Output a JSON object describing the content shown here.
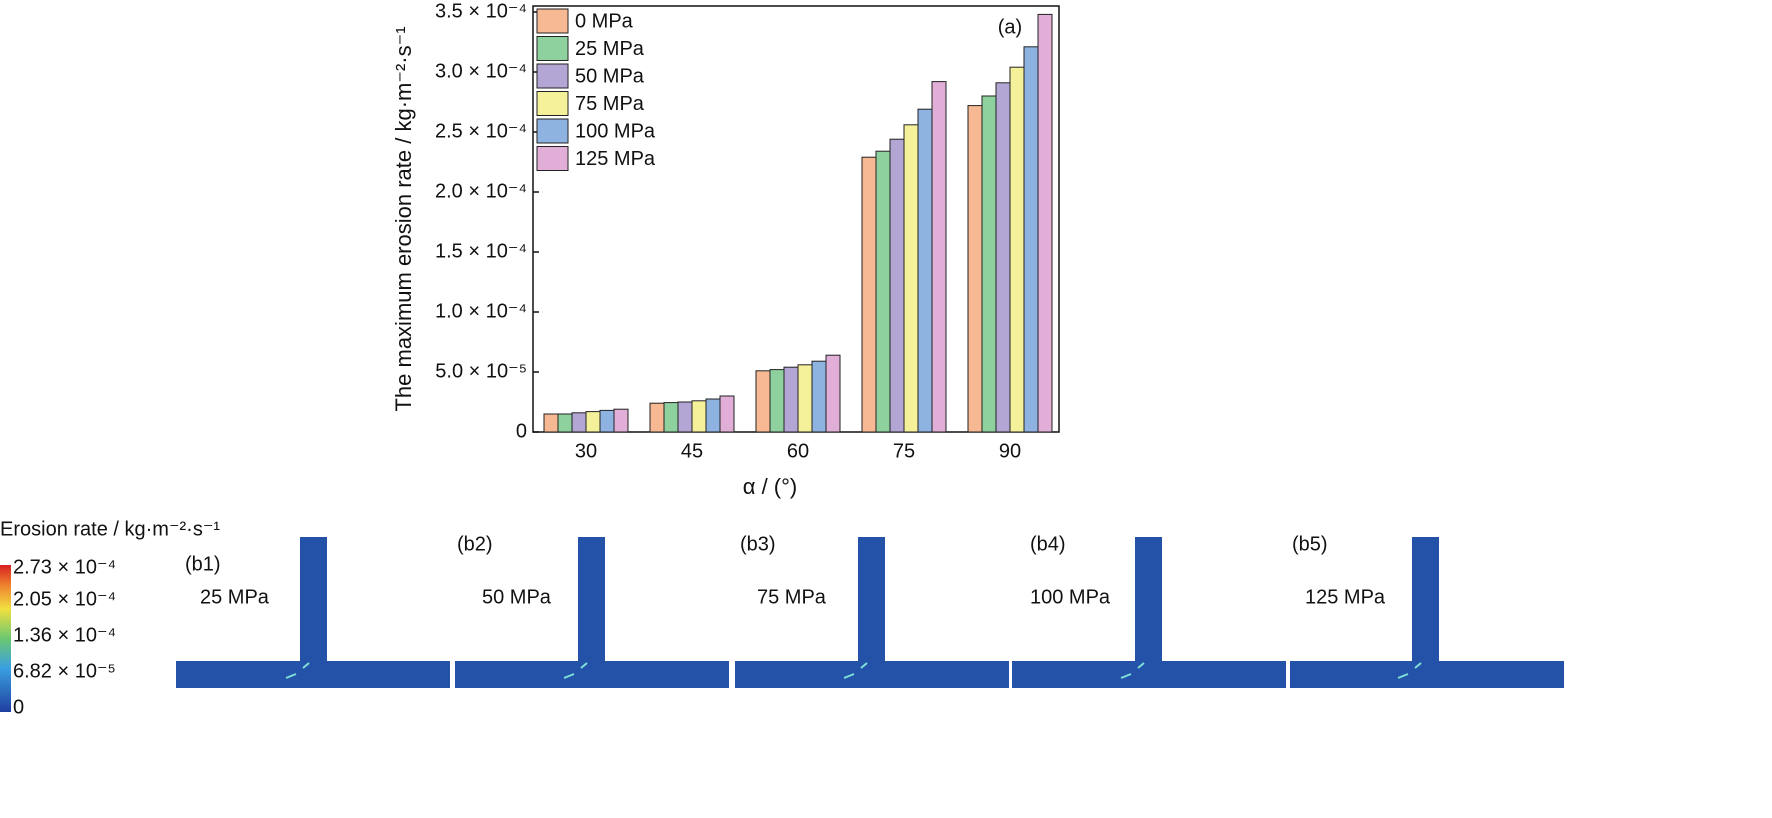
{
  "chart_data": {
    "type": "bar",
    "annotation": "(a)",
    "y_label": "The maximum erosion rate / kg·m⁻²·s⁻¹",
    "x_label": "α / (°)",
    "categories": [
      "30",
      "45",
      "60",
      "75",
      "90"
    ],
    "series": [
      {
        "name": "0 MPa",
        "color": "#f7b993",
        "values": [
          1.5e-05,
          2.4e-05,
          5.1e-05,
          0.000229,
          0.000272
        ]
      },
      {
        "name": "25 MPa",
        "color": "#8fd19e",
        "values": [
          1.5e-05,
          2.45e-05,
          5.2e-05,
          0.000234,
          0.00028
        ]
      },
      {
        "name": "50 MPa",
        "color": "#b3a6d4",
        "values": [
          1.6e-05,
          2.5e-05,
          5.4e-05,
          0.000244,
          0.000291
        ]
      },
      {
        "name": "75 MPa",
        "color": "#f5f09a",
        "values": [
          1.7e-05,
          2.6e-05,
          5.6e-05,
          0.000256,
          0.000304
        ]
      },
      {
        "name": "100 MPa",
        "color": "#8fb3e0",
        "values": [
          1.8e-05,
          2.75e-05,
          5.9e-05,
          0.000269,
          0.000321
        ]
      },
      {
        "name": "125 MPa",
        "color": "#e0aed6",
        "values": [
          1.9e-05,
          3e-05,
          6.4e-05,
          0.000292,
          0.000348
        ]
      }
    ],
    "ylim": [
      0,
      0.000355
    ],
    "yticks": [
      0,
      {
        "value": 5e-05,
        "label": "5.0 × 10⁻⁵"
      },
      {
        "value": 0.0001,
        "label": "1.0 × 10⁻⁴"
      },
      {
        "value": 0.00015,
        "label": "1.5 × 10⁻⁴"
      },
      {
        "value": 0.0002,
        "label": "2.0 × 10⁻⁴"
      },
      {
        "value": 0.00025,
        "label": "2.5 × 10⁻⁴"
      },
      {
        "value": 0.0003,
        "label": "3.0 × 10⁻⁴"
      },
      {
        "value": 0.00035,
        "label": "3.5 × 10⁻⁴"
      }
    ],
    "legend": "upper left"
  },
  "contour": {
    "colorbar_title": "Erosion rate / kg·m⁻²·s⁻¹",
    "colorbar_labels": [
      "2.73 × 10⁻⁴",
      "2.05 × 10⁻⁴",
      "1.36 × 10⁻⁴",
      "6.82 × 10⁻⁵",
      "0"
    ],
    "panels": [
      {
        "label": "(b1)",
        "pressure": "25 MPa"
      },
      {
        "label": "(b2)",
        "pressure": "50 MPa"
      },
      {
        "label": "(b3)",
        "pressure": "75 MPa"
      },
      {
        "label": "(b4)",
        "pressure": "100 MPa"
      },
      {
        "label": "(b5)",
        "pressure": "125 MPa"
      }
    ]
  }
}
